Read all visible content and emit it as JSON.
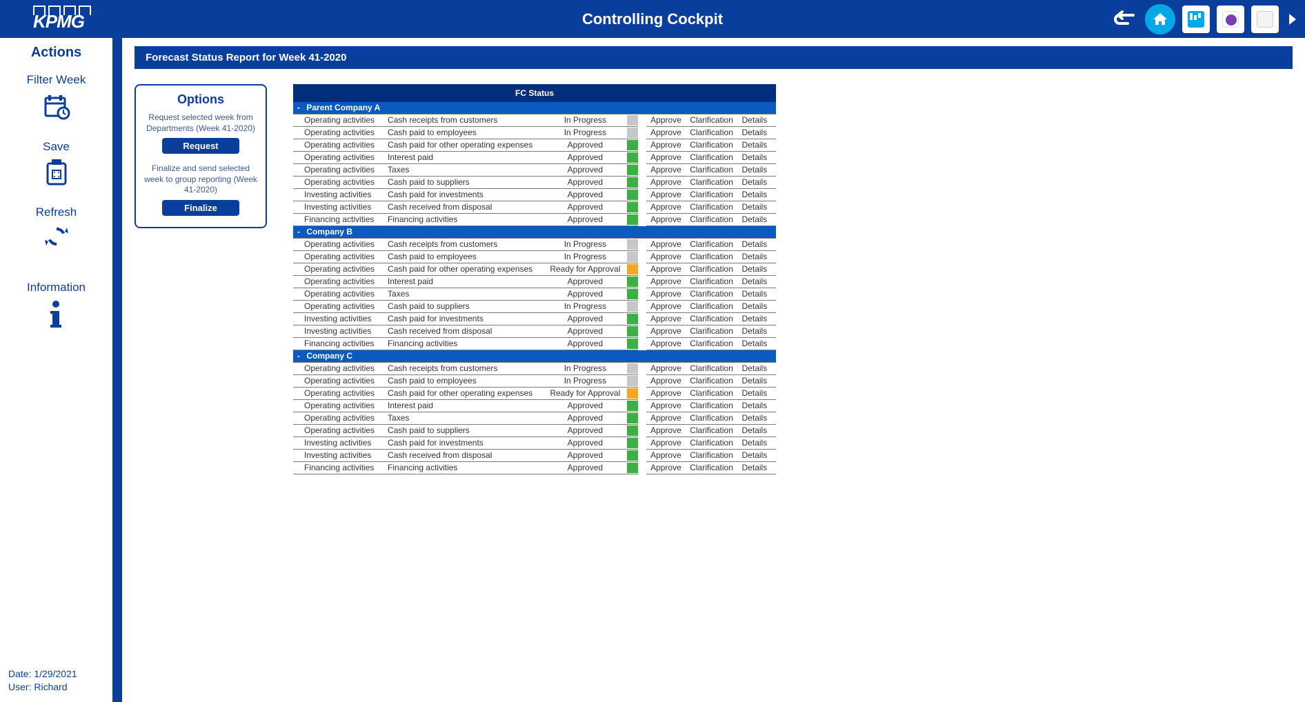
{
  "colors": {
    "brand_blue": "#0a3e9d",
    "header_blue": "#002e7a",
    "group_blue": "#0a5ac2",
    "accent_cyan": "#00a8e8",
    "status": {
      "InProgress": "#c7c7c7",
      "Approved": "#3cb043",
      "ReadyForApproval": "#f5a623"
    }
  },
  "topbar": {
    "logo_text": "KPMG",
    "title": "Controlling Cockpit"
  },
  "sidebar": {
    "title": "Actions",
    "items": [
      {
        "label": "Filter Week",
        "key": "filter-week"
      },
      {
        "label": "Save",
        "key": "save"
      },
      {
        "label": "Refresh",
        "key": "refresh"
      },
      {
        "label": "Information",
        "key": "information"
      }
    ],
    "footer_date_label": "Date: ",
    "footer_date": "1/29/2021",
    "footer_user_label": "User: ",
    "footer_user": "Richard"
  },
  "report": {
    "header": "Forecast Status Report for Week 41-2020",
    "options": {
      "title": "Options",
      "request_text": "Request selected week from Departments (Week 41-2020)",
      "request_btn": "Request",
      "finalize_text": "Finalize and send selected week to group reporting (Week 41-2020)",
      "finalize_btn": "Finalize"
    },
    "table": {
      "title": "FC Status",
      "action_labels": {
        "approve": "Approve",
        "clarify": "Clarification",
        "details": "Details"
      },
      "groups": [
        {
          "name": "Parent Company A",
          "rows": [
            {
              "activity": "Operating activities",
              "item": "Cash receipts from customers",
              "status": "In Progress"
            },
            {
              "activity": "Operating activities",
              "item": "Cash paid to employees",
              "status": "In Progress"
            },
            {
              "activity": "Operating activities",
              "item": "Cash paid for other operating expenses",
              "status": "Approved"
            },
            {
              "activity": "Operating activities",
              "item": "Interest paid",
              "status": "Approved"
            },
            {
              "activity": "Operating activities",
              "item": "Taxes",
              "status": "Approved"
            },
            {
              "activity": "Operating activities",
              "item": "Cash paid to suppliers",
              "status": "Approved"
            },
            {
              "activity": "Investing activities",
              "item": "Cash paid for investments",
              "status": "Approved"
            },
            {
              "activity": "Investing activities",
              "item": "Cash received from disposal",
              "status": "Approved"
            },
            {
              "activity": "Financing activities",
              "item": "Financing activities",
              "status": "Approved"
            }
          ]
        },
        {
          "name": "Company B",
          "rows": [
            {
              "activity": "Operating activities",
              "item": "Cash receipts from customers",
              "status": "In Progress"
            },
            {
              "activity": "Operating activities",
              "item": "Cash paid to employees",
              "status": "In Progress"
            },
            {
              "activity": "Operating activities",
              "item": "Cash paid for other operating expenses",
              "status": "Ready for Approval"
            },
            {
              "activity": "Operating activities",
              "item": "Interest paid",
              "status": "Approved"
            },
            {
              "activity": "Operating activities",
              "item": "Taxes",
              "status": "Approved"
            },
            {
              "activity": "Operating activities",
              "item": "Cash paid to suppliers",
              "status": "In Progress"
            },
            {
              "activity": "Investing activities",
              "item": "Cash paid for investments",
              "status": "Approved"
            },
            {
              "activity": "Investing activities",
              "item": "Cash received from disposal",
              "status": "Approved"
            },
            {
              "activity": "Financing activities",
              "item": "Financing activities",
              "status": "Approved"
            }
          ]
        },
        {
          "name": "Company C",
          "rows": [
            {
              "activity": "Operating activities",
              "item": "Cash receipts from customers",
              "status": "In Progress"
            },
            {
              "activity": "Operating activities",
              "item": "Cash paid to employees",
              "status": "In Progress"
            },
            {
              "activity": "Operating activities",
              "item": "Cash paid for other operating expenses",
              "status": "Ready for Approval"
            },
            {
              "activity": "Operating activities",
              "item": "Interest paid",
              "status": "Approved"
            },
            {
              "activity": "Operating activities",
              "item": "Taxes",
              "status": "Approved"
            },
            {
              "activity": "Operating activities",
              "item": "Cash paid to suppliers",
              "status": "Approved"
            },
            {
              "activity": "Investing activities",
              "item": "Cash paid for investments",
              "status": "Approved"
            },
            {
              "activity": "Investing activities",
              "item": "Cash received from disposal",
              "status": "Approved"
            },
            {
              "activity": "Financing activities",
              "item": "Financing activities",
              "status": "Approved"
            }
          ]
        }
      ]
    }
  }
}
